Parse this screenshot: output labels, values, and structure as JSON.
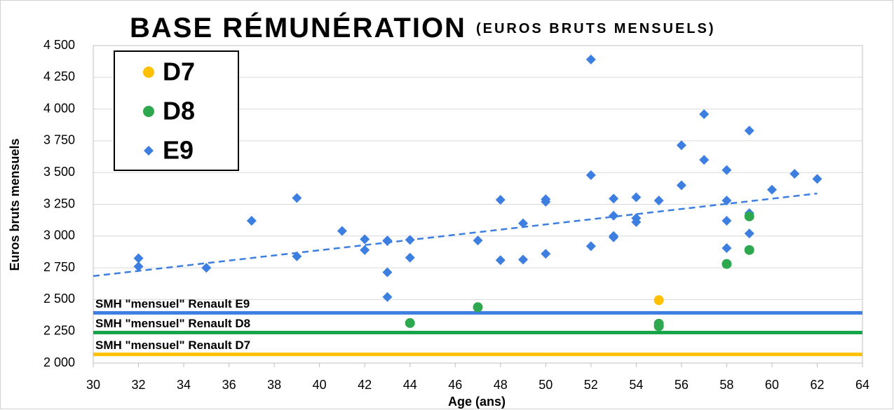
{
  "chart_data": {
    "type": "scatter",
    "title": "BASE RÉMUNÉRATION",
    "subtitle": "(EUROS BRUTS MENSUELS)",
    "xlabel": "Age (ans)",
    "ylabel": "Euros bruts mensuels",
    "xlim": [
      30,
      64
    ],
    "xticks": [
      30,
      32,
      34,
      36,
      38,
      40,
      42,
      44,
      46,
      48,
      50,
      52,
      54,
      56,
      58,
      60,
      62,
      64
    ],
    "ylim": [
      2000,
      4500
    ],
    "yticks": [
      {
        "value": 2000,
        "label": "2 000"
      },
      {
        "value": 2250,
        "label": "2 250"
      },
      {
        "value": 2500,
        "label": "2 500"
      },
      {
        "value": 2750,
        "label": "2 750"
      },
      {
        "value": 3000,
        "label": "3 000"
      },
      {
        "value": 3250,
        "label": "3 250"
      },
      {
        "value": 3500,
        "label": "3 500"
      },
      {
        "value": 3750,
        "label": "3 750"
      },
      {
        "value": 4000,
        "label": "4 000"
      },
      {
        "value": 4250,
        "label": "4 250"
      },
      {
        "value": 4500,
        "label": "4 500"
      }
    ],
    "grid": true,
    "legend": "upper left",
    "series": [
      {
        "name": "D7",
        "color": "#ffc000",
        "marker": "circle",
        "x": [
          55
        ],
        "values": [
          2495
        ]
      },
      {
        "name": "D8",
        "color": "#2ea84f",
        "marker": "circle",
        "x": [
          44,
          47,
          55,
          55,
          58,
          59,
          59
        ],
        "values": [
          2315,
          2440,
          2310,
          2290,
          2780,
          3155,
          2890
        ]
      },
      {
        "name": "E9",
        "color": "#3d7fe0",
        "marker": "diamond",
        "x": [
          32,
          32,
          35,
          37,
          39,
          39,
          41,
          42,
          42,
          43,
          43,
          43,
          43,
          44,
          44,
          47,
          48,
          48,
          49,
          49,
          50,
          50,
          50,
          52,
          52,
          52,
          53,
          53,
          53,
          53,
          54,
          54,
          54,
          55,
          56,
          56,
          57,
          57,
          58,
          58,
          58,
          58,
          59,
          59,
          59,
          59,
          60,
          61,
          62
        ],
        "values": [
          2825,
          2760,
          2750,
          3120,
          3300,
          2840,
          3040,
          2975,
          2890,
          2965,
          2960,
          2715,
          2520,
          2970,
          2830,
          2965,
          3285,
          2810,
          3100,
          2815,
          3290,
          3270,
          2860,
          4390,
          3480,
          2920,
          3295,
          3160,
          3000,
          2990,
          3305,
          3140,
          3110,
          3280,
          3715,
          3400,
          3960,
          3600,
          3520,
          3280,
          3120,
          2905,
          3830,
          3180,
          3165,
          3020,
          3365,
          3490,
          3450
        ]
      }
    ],
    "trendline": {
      "color": "#3d7fe0",
      "x": [
        30,
        62
      ],
      "values": [
        2685,
        3335
      ]
    },
    "reference_lines": [
      {
        "label": "SMH \"mensuel\" Renault E9",
        "value": 2395,
        "color": "#3d7fe0"
      },
      {
        "label": "SMH \"mensuel\" Renault D8",
        "value": 2240,
        "color": "#17a54a"
      },
      {
        "label": "SMH \"mensuel\" Renault D7",
        "value": 2068,
        "color": "#ffc000"
      }
    ]
  }
}
